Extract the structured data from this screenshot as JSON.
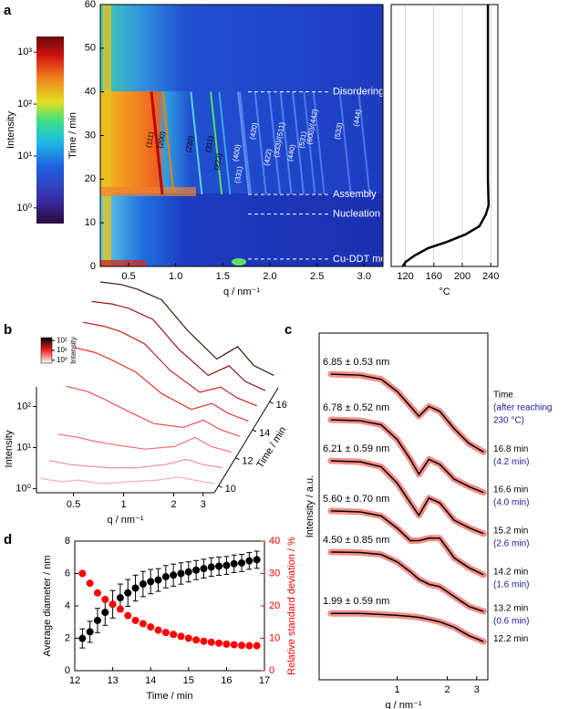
{
  "panel_labels": [
    "a",
    "b",
    "c",
    "d"
  ],
  "chart_data": [
    {
      "type": "heatmap",
      "xlabel": "q / nm⁻¹",
      "ylabel": "Time / min",
      "xlim": [
        0.2,
        3.2
      ],
      "xticks": [
        0.5,
        {
          "value": 1,
          "label": "1.0"
        },
        1.5,
        {
          "value": 2,
          "label": "2.0"
        },
        2.5,
        {
          "value": 3,
          "label": "3.0"
        }
      ],
      "ylim": [
        0,
        60
      ],
      "yticks": [
        0,
        10,
        20,
        30,
        40,
        50,
        60
      ],
      "colorbar": {
        "label": "Intensity",
        "colormap": "rainbow",
        "log": true,
        "lim": [
          0.5,
          2000
        ],
        "ticks": [
          {
            "value": 1,
            "label": "10⁰"
          },
          {
            "value": 10,
            "label": "10¹"
          },
          {
            "value": 100,
            "label": "10²"
          },
          {
            "value": 1000,
            "label": "10³"
          }
        ]
      },
      "events": [
        {
          "text": "Disordering",
          "time": 40
        },
        {
          "text": "Assembly",
          "time": 16.5
        },
        {
          "text": "Nucleation",
          "time": 12
        },
        {
          "text": "Cu-DDT melting",
          "time": 1.7
        }
      ],
      "peaks": [
        {
          "label": "(111)",
          "q": 0.8,
          "time": 29,
          "color": "#c00000",
          "label_color": "#000000"
        },
        {
          "label": "(200)",
          "q": 0.92,
          "time": 29,
          "color": "#f08000",
          "label_color": "#000000"
        },
        {
          "label": "(220)",
          "q": 1.22,
          "time": 28,
          "color": "#60d0e0",
          "label_color": "#000000"
        },
        {
          "label": "(311)",
          "q": 1.43,
          "time": 28,
          "color": "#50e060",
          "label_color": "#000000"
        },
        {
          "label": "(222)",
          "q": 1.52,
          "time": 24,
          "color": "#40a0f0",
          "label_color": "#000000"
        },
        {
          "label": "(400)",
          "q": 1.72,
          "time": 26,
          "color": "#6090f0",
          "label_color": "#ffffff"
        },
        {
          "label": "(331)",
          "q": 1.74,
          "time": 21,
          "color": "#5080f0",
          "label_color": "#ffffff"
        },
        {
          "label": "(420)",
          "q": 1.9,
          "time": 31,
          "color": "#5080f0",
          "label_color": "#ffffff"
        },
        {
          "label": "(422)",
          "q": 2.05,
          "time": 25,
          "color": "#5080f0",
          "label_color": "#ffffff"
        },
        {
          "label": "(333)/(511)",
          "q": 2.17,
          "time": 29,
          "color": "#5080f0",
          "label_color": "#ffffff"
        },
        {
          "label": "(440)",
          "q": 2.3,
          "time": 26,
          "color": "#5080f0",
          "label_color": "#ffffff"
        },
        {
          "label": "(531)",
          "q": 2.42,
          "time": 29,
          "color": "#4a78e8",
          "label_color": "#ffffff"
        },
        {
          "label": "(600)/(442)",
          "q": 2.52,
          "time": 32,
          "color": "#4a78e8",
          "label_color": "#ffffff"
        },
        {
          "label": "(533)",
          "q": 2.8,
          "time": 31,
          "color": "#4a78e8",
          "label_color": "#ffffff"
        },
        {
          "label": "(444)",
          "q": 3.0,
          "time": 34,
          "color": "#4a78e8",
          "label_color": "#ffffff"
        }
      ]
    },
    {
      "type": "line",
      "xlabel": "°C",
      "xlim": [
        100,
        250
      ],
      "xticks": [
        120,
        160,
        200,
        240
      ],
      "ylim": [
        0,
        60
      ],
      "grid": true,
      "x": [
        116,
        120,
        133,
        152,
        178,
        204,
        224,
        233,
        237,
        236,
        236,
        236
      ],
      "series": [
        {
          "color": "#000000",
          "values": [
            0,
            1,
            2.5,
            4.2,
            5.6,
            7.3,
            9.2,
            11.9,
            14,
            20,
            40,
            60
          ]
        }
      ]
    },
    {
      "type": "waterfall",
      "xlabel": "q / nm⁻¹",
      "ylabel": "Intensity",
      "zlabel": "Time / min",
      "xlim": [
        0.3,
        3.5
      ],
      "xticks": [
        0.5,
        1,
        2,
        3
      ],
      "ylim": [
        0.8,
        300
      ],
      "yticks": [
        {
          "value": 1,
          "label": "10⁰"
        },
        {
          "value": 10,
          "label": "10¹"
        },
        {
          "value": 100,
          "label": "10²"
        }
      ],
      "zlim": [
        9.5,
        17
      ],
      "zticks": [
        10,
        12,
        14,
        16
      ],
      "colorbar": {
        "label": "Intensity",
        "colormap": "whiteredblack",
        "log": true,
        "lim": [
          0.5,
          200
        ],
        "ticks": [
          {
            "value": 1,
            "label": "10⁰"
          },
          {
            "value": 10,
            "label": "10¹"
          },
          {
            "value": 100,
            "label": "10²"
          }
        ]
      },
      "x": [
        0.3,
        0.4,
        0.5,
        0.7,
        1,
        1.5,
        2,
        2.5,
        3.3
      ],
      "series": [
        {
          "time": 10,
          "color": "#f6b0b0",
          "values": [
            1.2,
            1.0,
            1.1,
            0.9,
            1.0,
            1.1,
            1.3,
            1.1,
            0.9
          ]
        },
        {
          "time": 11,
          "color": "#f29090",
          "values": [
            1.5,
            1.2,
            1.1,
            1.0,
            1.0,
            1.2,
            1.6,
            1.2,
            1.0
          ]
        },
        {
          "time": 12,
          "color": "#ee7070",
          "values": [
            3,
            2.5,
            2,
            1.6,
            1.3,
            1.5,
            2.5,
            1.5,
            1.1
          ]
        },
        {
          "time": 13,
          "color": "#e85050",
          "values": [
            20,
            15,
            10,
            5,
            2.5,
            2,
            3,
            1.8,
            1.2
          ]
        },
        {
          "time": 14,
          "color": "#e03535",
          "values": [
            80,
            60,
            40,
            20,
            6,
            2.5,
            3.5,
            2,
            1.3
          ]
        },
        {
          "time": 15,
          "color": "#c82020",
          "values": [
            150,
            120,
            90,
            45,
            10,
            3,
            4,
            2.2,
            1.4
          ]
        },
        {
          "time": 16,
          "color": "#901515",
          "values": [
            220,
            190,
            150,
            80,
            15,
            3.5,
            6,
            2.5,
            1.5
          ]
        },
        {
          "time": 17,
          "color": "#401010",
          "values": [
            300,
            260,
            200,
            110,
            20,
            4,
            8,
            2.8,
            1.6
          ]
        }
      ]
    },
    {
      "type": "line",
      "xlabel": "q / nm⁻¹",
      "ylabel": "Intensity / a.u.",
      "xlog": true,
      "ylog": true,
      "xlim": [
        0.34,
        3.5
      ],
      "xticks": [
        1,
        2,
        3
      ],
      "ylim": [
        1,
        10000000
      ],
      "header": [
        {
          "text": "Time",
          "color": "#000000"
        },
        {
          "text": "(after reaching",
          "color": "#1a1a9a"
        },
        {
          "text": "230 °C)",
          "color": "#1a1a9a"
        }
      ],
      "note_color": "#1a1a9a",
      "x": [
        0.4,
        0.6,
        0.8,
        1.0,
        1.2,
        1.35,
        1.55,
        1.8,
        2.2,
        2.7,
        3.3
      ],
      "series": [
        {
          "name": "6.85 ± 0.53 nm",
          "time": "16.8 min",
          "time_after": "(4.2 min)",
          "color": "#f4908a",
          "fit_color": "#000000",
          "values": [
            1480000,
            1410000,
            1170000,
            661000,
            331000,
            209000,
            331000,
            263000,
            117000,
            58900,
            39800
          ]
        },
        {
          "name": "6.78 ± 0.52 nm",
          "time": "16.6 min",
          "time_after": "(4.0 min)",
          "color": "#f4908a",
          "fit_color": "#000000",
          "values": [
            178000,
            170000,
            141000,
            70800,
            28200,
            14100,
            28200,
            22400,
            11200,
            7940,
            6030
          ]
        },
        {
          "name": "6.21 ± 0.59 nm",
          "time": "15.2 min",
          "time_after": "(2.6 min)",
          "color": "#f4908a",
          "fit_color": "#000000",
          "values": [
            26300,
            25100,
            20000,
            9330,
            3720,
            2090,
            4680,
            3720,
            1660,
            1170,
            891
          ]
        },
        {
          "name": "5.60 ± 0.70 nm",
          "time": "14.2 min",
          "time_after": "(1.6 min)",
          "color": "#f4908a",
          "fit_color": "#000000",
          "values": [
            2570,
            2450,
            2040,
            1150,
            646,
            646,
            724,
            724,
            288,
            182,
            132
          ]
        },
        {
          "name": "4.50 ± 0.85 nm",
          "time": "13.2 min",
          "time_after": "(0.6 min)",
          "color": "#f4908a",
          "fit_color": "#000000",
          "values": [
            380,
            372,
            339,
            240,
            151,
            107,
            85.1,
            75.9,
            47.9,
            30.2,
            24.0
          ]
        },
        {
          "name": "1.99 ± 0.59 nm",
          "time": "12.2 min",
          "color": "#f4908a",
          "fit_color": "#000000",
          "values": [
            21.9,
            21.9,
            20.9,
            20.0,
            19.1,
            18.2,
            16.6,
            14.8,
            11.5,
            7.76,
            5.89
          ]
        }
      ]
    },
    {
      "type": "scatter",
      "xlabel": "Time / min",
      "ylabel": "Average diameter / nm",
      "y2label": "Relative standard deviation / %",
      "y2color": "#ff0000",
      "xlim": [
        12,
        17
      ],
      "xticks": [
        12,
        13,
        14,
        15,
        16,
        17
      ],
      "ylim": [
        0,
        8
      ],
      "yticks": [
        0,
        2,
        4,
        6,
        8
      ],
      "y2lim": [
        0,
        40
      ],
      "y2ticks": [
        0,
        10,
        20,
        30,
        40
      ],
      "x": [
        12.2,
        12.4,
        12.6,
        12.8,
        13,
        13.2,
        13.4,
        13.6,
        13.8,
        14,
        14.2,
        14.4,
        14.6,
        14.8,
        15,
        15.2,
        15.4,
        15.6,
        15.8,
        16,
        16.2,
        16.4,
        16.6,
        16.8
      ],
      "series": [
        {
          "color": "#000000",
          "values": [
            1.99,
            2.4,
            3.1,
            3.6,
            4.1,
            4.5,
            4.8,
            5.1,
            5.35,
            5.5,
            5.6,
            5.8,
            5.9,
            6,
            6.1,
            6.21,
            6.3,
            6.4,
            6.45,
            6.5,
            6.6,
            6.65,
            6.78,
            6.85
          ],
          "errors": [
            0.59,
            0.65,
            0.75,
            0.8,
            0.85,
            0.85,
            0.83,
            0.8,
            0.78,
            0.75,
            0.7,
            0.69,
            0.68,
            0.66,
            0.62,
            0.59,
            0.58,
            0.57,
            0.56,
            0.55,
            0.54,
            0.53,
            0.52,
            0.53
          ]
        },
        {
          "color": "#ff0000",
          "axis": "y2",
          "values": [
            30,
            27,
            24,
            22,
            20.5,
            19,
            17,
            15.5,
            14.5,
            13.5,
            12.5,
            11.8,
            11.2,
            10.6,
            10,
            9.5,
            9.1,
            8.8,
            8.5,
            8.2,
            8,
            7.8,
            7.7,
            7.7
          ]
        }
      ]
    }
  ]
}
